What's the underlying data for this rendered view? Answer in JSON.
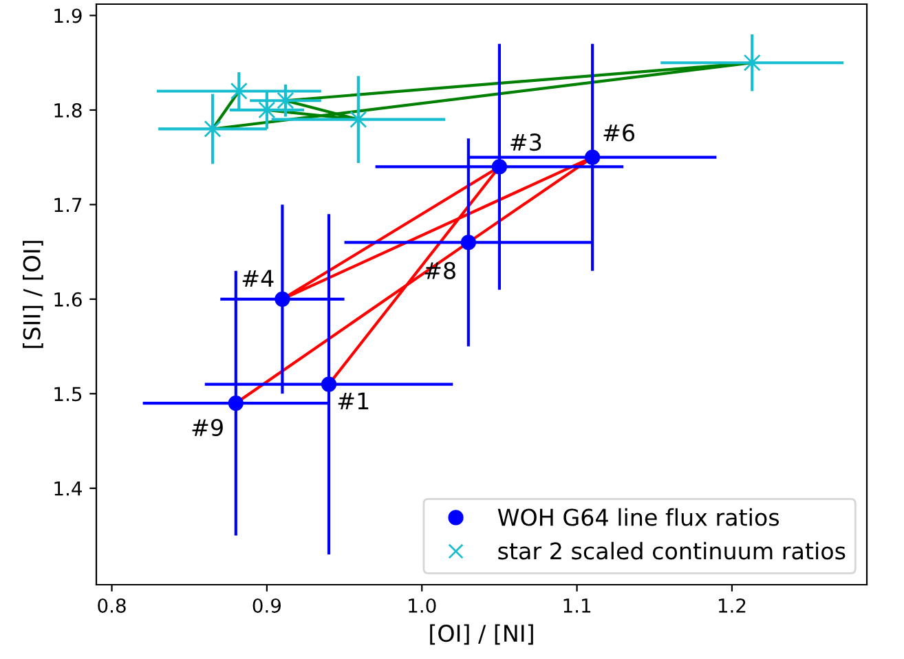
{
  "chart_data": {
    "type": "scatter",
    "xlabel": "[OI] / [NI]",
    "ylabel": "[SII] / [OI]",
    "xlim": [
      0.79,
      1.287
    ],
    "ylim": [
      1.298,
      1.912
    ],
    "xticks": [
      0.8,
      0.9,
      {
        "value": 1.0,
        "label": "1.0"
      },
      1.1,
      1.2
    ],
    "yticks": [
      1.4,
      1.5,
      1.6,
      1.7,
      1.8,
      1.9
    ],
    "grid": false,
    "legend": "bottom right",
    "series": [
      {
        "type": "line",
        "color": "#ff0000",
        "x": [
          0.94,
          1.05,
          0.91,
          1.11,
          1.03,
          0.88
        ],
        "values": [
          1.51,
          1.74,
          1.6,
          1.75,
          1.66,
          1.49
        ]
      },
      {
        "type": "line",
        "color": "#008000",
        "x": [
          0.882,
          0.865,
          1.213,
          0.912,
          0.959,
          0.9
        ],
        "values": [
          1.82,
          1.78,
          1.85,
          1.81,
          1.79,
          1.8
        ]
      },
      {
        "name": "WOH G64 line flux ratios",
        "color": "#0000ff",
        "marker": "circle",
        "x": [
          0.94,
          1.05,
          0.91,
          1.11,
          1.03,
          0.88
        ],
        "values": [
          1.51,
          1.74,
          1.6,
          1.75,
          1.66,
          1.49
        ],
        "errors": [
          0.18,
          0.13,
          0.1,
          0.12,
          0.11,
          0.14
        ],
        "xerrors": [
          0.08,
          0.08,
          0.04,
          0.08,
          0.08,
          0.06
        ]
      },
      {
        "name": "star 2 scaled continuum ratios",
        "color": "#17becf",
        "marker": "cross",
        "x": [
          0.882,
          0.865,
          1.213,
          0.912,
          0.959,
          0.9
        ],
        "values": [
          1.82,
          1.78,
          1.85,
          1.81,
          1.79,
          1.8
        ],
        "errors": [
          0.02,
          0.037,
          0.03,
          0.017,
          0.046,
          0.02
        ],
        "xerrors": [
          0.053,
          0.035,
          0.059,
          0.023,
          0.056,
          0.024
        ]
      }
    ],
    "annotations": [
      {
        "text": "#1",
        "x": 0.94,
        "y": 1.51
      },
      {
        "text": "#3",
        "x": 1.05,
        "y": 1.74
      },
      {
        "text": "#4",
        "x": 0.91,
        "y": 1.6
      },
      {
        "text": "#6",
        "x": 1.11,
        "y": 1.75
      },
      {
        "text": "#8",
        "x": 1.03,
        "y": 1.66
      },
      {
        "text": "#9",
        "x": 0.88,
        "y": 1.49
      }
    ]
  }
}
